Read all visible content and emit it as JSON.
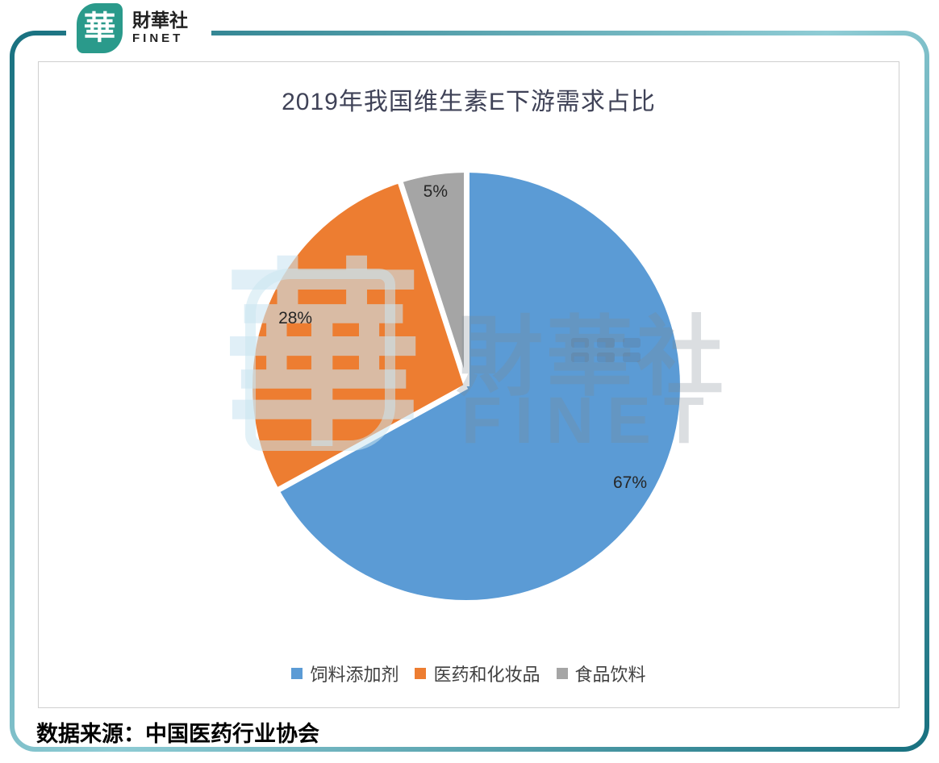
{
  "brand": {
    "logo_glyph": "華",
    "name": "財華社",
    "latin": "FINET"
  },
  "chart_data": {
    "type": "pie",
    "title": "2019年我国维生素E下游需求占比",
    "categories": [
      "饲料添加剂",
      "医药和化妆品",
      "食品饮料"
    ],
    "values": [
      67,
      28,
      5
    ],
    "labels": [
      "67%",
      "28%",
      "5%"
    ],
    "colors": [
      "#5B9BD5",
      "#ED7D31",
      "#A5A5A5"
    ],
    "unit": "%",
    "start_angle_deg": 0,
    "direction": "clockwise",
    "slice_border_color": "#FFFFFF",
    "legend_position": "bottom"
  },
  "watermark": {
    "logo_glyph": "華",
    "name": "財華社",
    "latin": "FINET"
  },
  "footer": {
    "source_note": "数据来源：中国医药行业协会"
  },
  "theme": {
    "frame_dark": "#17707F",
    "frame_light": "#8FCCD5",
    "logo_bg": "#2A9A8B",
    "title_color": "#3F4257",
    "pie_blue": "#5B9BD5",
    "pie_orange": "#ED7D31",
    "pie_gray": "#A5A5A5",
    "box_border": "#CFCFCF"
  }
}
